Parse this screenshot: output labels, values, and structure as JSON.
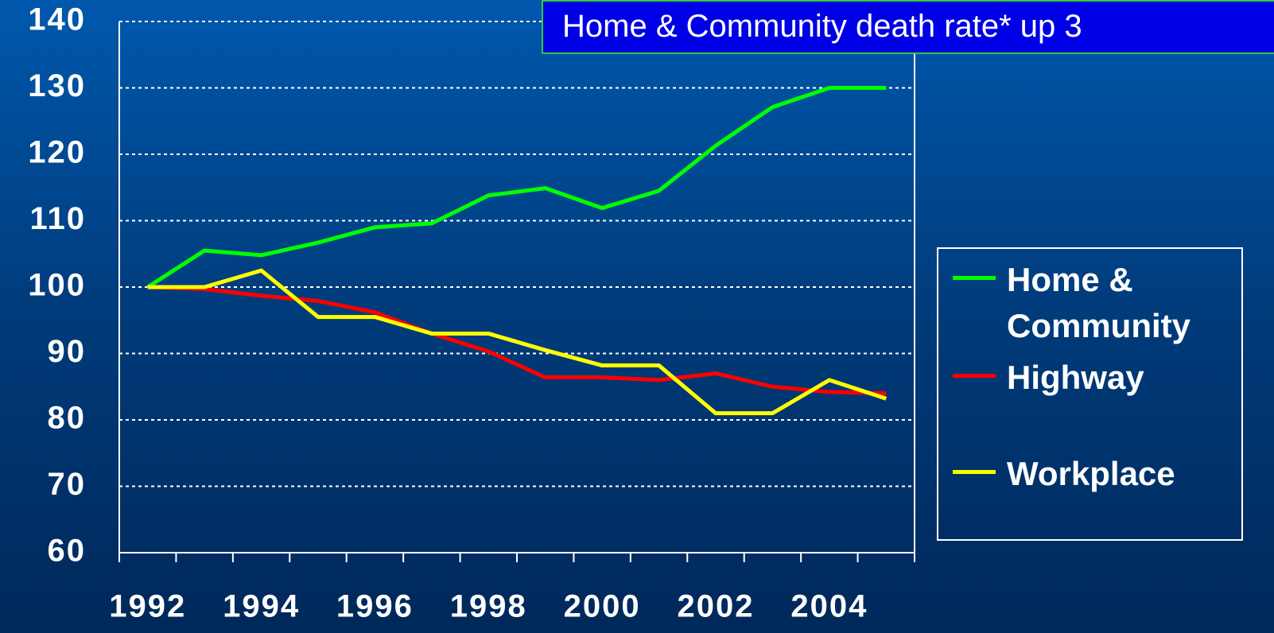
{
  "chart_data": {
    "type": "line",
    "title": "Home & Community death rate* up 3",
    "categories": [
      "1992",
      null,
      "1994",
      null,
      "1996",
      null,
      "1998",
      null,
      "2000",
      null,
      "2002",
      null,
      "2004",
      null
    ],
    "series": [
      {
        "name": "Home & Community",
        "color": "#00ff00",
        "values": [
          100,
          105.5,
          104.8,
          106.7,
          109,
          109.6,
          113.8,
          114.9,
          111.9,
          114.5,
          121.3,
          127.1,
          130,
          130
        ]
      },
      {
        "name": "Highway",
        "color": "#ff0000",
        "values": [
          100,
          99.7,
          98.7,
          97.9,
          96.2,
          93,
          90.3,
          86.4,
          86.4,
          86,
          87,
          85,
          84.2,
          84
        ]
      },
      {
        "name": "Workplace",
        "color": "#ffff00",
        "values": [
          100,
          100,
          102.5,
          95.5,
          95.5,
          93,
          93,
          90.5,
          88.2,
          88.2,
          81,
          81,
          86,
          83.2
        ]
      }
    ],
    "ylim": [
      60,
      140
    ],
    "yticks": [
      60,
      70,
      80,
      90,
      100,
      110,
      120,
      130,
      140
    ],
    "grid": true
  }
}
